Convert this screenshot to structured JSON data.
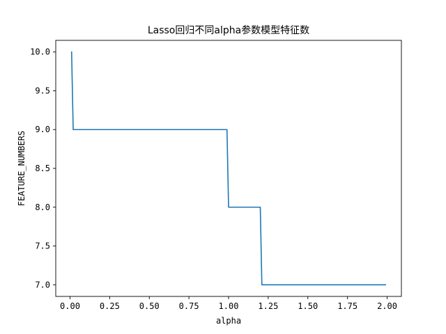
{
  "chart_data": {
    "type": "line",
    "title": "Lasso回归不同alpha参数模型特征数",
    "xlabel": "alpha",
    "ylabel": "FEATURE_NUMBERS",
    "xlim": [
      -0.09,
      2.09
    ],
    "ylim": [
      6.85,
      10.15
    ],
    "xticks": [
      0.0,
      0.25,
      0.5,
      0.75,
      1.0,
      1.25,
      1.5,
      1.75,
      2.0
    ],
    "xtick_labels": [
      "0.00",
      "0.25",
      "0.50",
      "0.75",
      "1.00",
      "1.25",
      "1.50",
      "1.75",
      "2.00"
    ],
    "yticks": [
      7.0,
      7.5,
      8.0,
      8.5,
      9.0,
      9.5,
      10.0
    ],
    "ytick_labels": [
      "7.0",
      "7.5",
      "8.0",
      "8.5",
      "9.0",
      "9.5",
      "10.0"
    ],
    "grid": false,
    "series": [
      {
        "color": "#1f77b4",
        "x": [
          0.01,
          0.02,
          0.99,
          1.0,
          1.2,
          1.21,
          1.99
        ],
        "y": [
          10,
          9,
          9,
          8,
          8,
          7,
          7
        ]
      }
    ]
  }
}
